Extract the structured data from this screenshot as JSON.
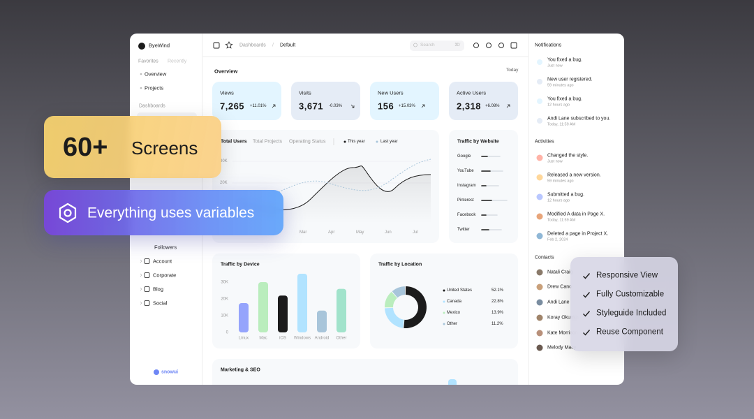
{
  "sidebar": {
    "brand": "ByeWind",
    "tabs": [
      "Favorites",
      "Recently"
    ],
    "favorites": [
      "Overview",
      "Projects"
    ],
    "section": "Dashboards",
    "items": [
      "Followers",
      "Account",
      "Corporate",
      "Blog",
      "Social"
    ],
    "logo": "snowui"
  },
  "topbar": {
    "breadcrumb": [
      "Dashboards",
      "/",
      "Default"
    ],
    "search": "Search",
    "shortcut": "⌘/"
  },
  "overview": {
    "title": "Overview",
    "period": "Today",
    "cards": [
      {
        "label": "Views",
        "value": "7,265",
        "change": "+11.01%"
      },
      {
        "label": "Visits",
        "value": "3,671",
        "change": "-0.03%"
      },
      {
        "label": "New Users",
        "value": "156",
        "change": "+15.03%"
      },
      {
        "label": "Active Users",
        "value": "2,318",
        "change": "+6.08%"
      }
    ]
  },
  "total_users": {
    "tabs": [
      "Total Users",
      "Total Projects",
      "Operating Status"
    ],
    "legend": [
      "This year",
      "Last year"
    ],
    "yticks": [
      "30K",
      "20K"
    ],
    "months": [
      "Mar",
      "Apr",
      "May",
      "Jun",
      "Jul"
    ]
  },
  "traffic_by_website": {
    "title": "Traffic by Website",
    "sites": [
      "Google",
      "YouTube",
      "Instagram",
      "Pinterest",
      "Facebook",
      "Twitter"
    ]
  },
  "traffic_by_device": {
    "title": "Traffic by Device",
    "categories": [
      "Linux",
      "Mac",
      "iOS",
      "Windows",
      "Android",
      "Other"
    ],
    "values": [
      17500,
      30000,
      22000,
      35000,
      13000,
      26000
    ],
    "colors": [
      "#95a4fc",
      "#baedbd",
      "#1c1c1c",
      "#b1e3ff",
      "#a8c5da",
      "#a1e3cb"
    ],
    "ylim": [
      0,
      36000
    ],
    "yticks": [
      {
        "value": 30000,
        "label": "30K"
      },
      {
        "value": 20000,
        "label": "20K"
      },
      {
        "value": 10000,
        "label": "10K"
      },
      0
    ]
  },
  "traffic_by_location": {
    "title": "Traffic by Location",
    "categories": [
      "United States",
      "Canada",
      "Mexico",
      "Other"
    ],
    "values": [
      52.1,
      22.8,
      13.9,
      11.2
    ],
    "value_labels": [
      "52.1%",
      "22.8%",
      "13.9%",
      "11.2%"
    ],
    "colors": [
      "#1c1c1c",
      "#b1e3ff",
      "#baedbd",
      "#a8c5da"
    ]
  },
  "marketing": {
    "title": "Marketing & SEO"
  },
  "notifications": {
    "title": "Notifications",
    "items": [
      {
        "text": "You fixed a bug.",
        "time": "Just now"
      },
      {
        "text": "New user registered.",
        "time": "59 minutes ago"
      },
      {
        "text": "You fixed a bug.",
        "time": "12 hours ago"
      },
      {
        "text": "Andi Lane subscribed to you.",
        "time": "Today, 11:59 AM"
      }
    ]
  },
  "activities": {
    "title": "Activities",
    "items": [
      {
        "text": "Changed the style.",
        "time": "Just now"
      },
      {
        "text": "Released a new version.",
        "time": "59 minutes ago"
      },
      {
        "text": "Submitted a bug.",
        "time": "12 hours ago"
      },
      {
        "text": "Modified A data in Page X.",
        "time": "Today, 11:59 AM"
      },
      {
        "text": "Deleted a page in Project X.",
        "time": "Feb 2, 2024"
      }
    ]
  },
  "contacts": {
    "title": "Contacts",
    "names": [
      "Natali Craig",
      "Drew Cano",
      "Andi Lane",
      "Koray Okumus",
      "Kate Morrison",
      "Melody Macy"
    ]
  },
  "promo": {
    "count": "60+",
    "screens": "Screens",
    "variables": "Everything uses variables",
    "features": [
      "Responsive View",
      "Fully Customizable",
      "Styleguide Included",
      "Reuse Component"
    ]
  }
}
